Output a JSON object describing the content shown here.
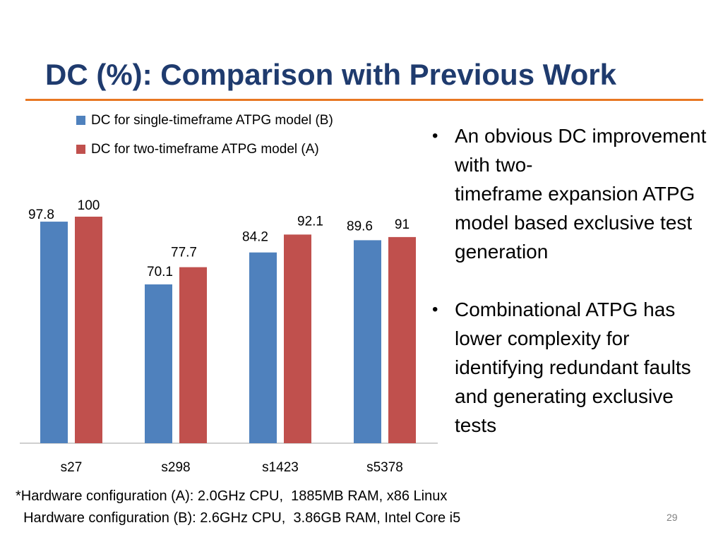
{
  "slide": {
    "title": "DC (%): Comparison with Previous Work",
    "page_number": "29",
    "accent_color": "#e87722",
    "title_color": "#1f3b6e"
  },
  "bullets": [
    "An obvious DC improvement with two-\ntimeframe expansion ATPG model based exclusive test generation",
    "Combinational ATPG has lower complexity for identifying redundant faults and generating exclusive tests"
  ],
  "footnote": {
    "line1": "*Hardware configuration (A): 2.0GHz CPU,  1885MB RAM, x86 Linux",
    "line2": "  Hardware configuration (B): 2.6GHz CPU,  3.86GB RAM, Intel Core i5"
  },
  "chart_data": {
    "type": "bar",
    "categories": [
      "s27",
      "s298",
      "s1423",
      "s5378"
    ],
    "series": [
      {
        "name": "DC for single-timeframe ATPG model (B)",
        "color": "#4f81bd",
        "values": [
          97.8,
          70.1,
          84.2,
          89.6
        ]
      },
      {
        "name": "DC for two-timeframe ATPG model (A)",
        "color": "#c0504d",
        "values": [
          100,
          77.7,
          92.1,
          91
        ]
      }
    ],
    "ylim": [
      0,
      110
    ],
    "grid": false,
    "legend_position": "top-left",
    "data_labels": true
  }
}
